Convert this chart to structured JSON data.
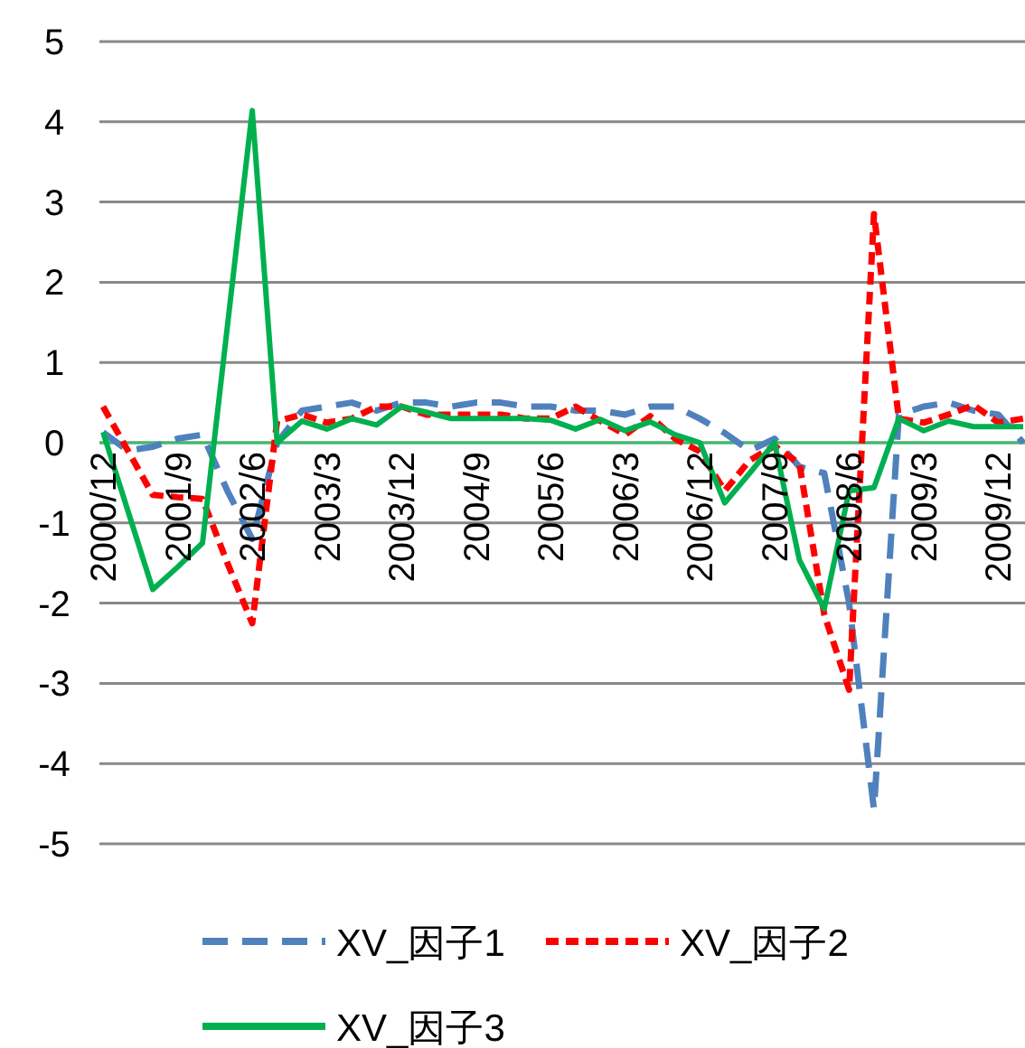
{
  "chart_data": {
    "type": "line",
    "categories": [
      "2000/12",
      null,
      null,
      "2001/9",
      null,
      null,
      "2002/6",
      null,
      null,
      "2003/3",
      null,
      null,
      "2003/12",
      null,
      null,
      "2004/9",
      null,
      null,
      "2005/6",
      null,
      null,
      "2006/3",
      null,
      null,
      "2006/12",
      null,
      null,
      "2007/9",
      null,
      null,
      "2008/6",
      null,
      null,
      "2009/3",
      null,
      null,
      "2009/12",
      null
    ],
    "series": [
      {
        "name": "XV_因子1",
        "color": "#4f81bd",
        "line_style": "dashed",
        "values": [
          0.13,
          -0.1,
          -0.05,
          0.05,
          0.1,
          -0.6,
          -1.2,
          0,
          0.4,
          0.45,
          0.5,
          0.4,
          0.5,
          0.5,
          0.45,
          0.5,
          0.5,
          0.45,
          0.45,
          0.4,
          0.4,
          0.35,
          0.45,
          0.45,
          0.3,
          0.12,
          -0.1,
          0.05,
          -0.3,
          -0.38,
          -2.0,
          -4.57,
          0.35,
          0.45,
          0.5,
          0.4,
          0.35,
          0.0
        ]
      },
      {
        "name": "XV_因子2",
        "color": "#ff0000",
        "line_style": "dotted",
        "values": [
          0.45,
          -0.1,
          -0.65,
          -0.68,
          -0.7,
          -1.5,
          -2.25,
          0.27,
          0.35,
          0.25,
          0.3,
          0.45,
          0.45,
          0.35,
          0.35,
          0.35,
          0.35,
          0.3,
          0.3,
          0.45,
          0.27,
          0.1,
          0.33,
          0.05,
          -0.11,
          -0.6,
          -0.22,
          -0.04,
          -0.26,
          -2.14,
          -3.08,
          2.85,
          0.3,
          0.25,
          0.35,
          0.47,
          0.25,
          0.3
        ]
      },
      {
        "name": "XV_因子3",
        "color": "#00b050",
        "line_style": "solid",
        "values": [
          0.13,
          -0.85,
          -1.83,
          -1.55,
          -1.25,
          1.45,
          4.14,
          0,
          0.27,
          0.17,
          0.3,
          0.22,
          0.45,
          0.38,
          0.3,
          0.3,
          0.3,
          0.3,
          0.28,
          0.17,
          0.29,
          0.15,
          0.26,
          0.1,
          0.0,
          -0.75,
          -0.38,
          0.0,
          -1.46,
          -2.07,
          -0.6,
          -0.56,
          0.3,
          0.15,
          0.27,
          0.2,
          0.2,
          0.2
        ]
      }
    ],
    "ylim": [
      -5,
      5
    ],
    "yticks": [
      -5,
      -4,
      -3,
      -2,
      -1,
      0,
      1,
      2,
      3,
      4,
      5
    ],
    "grid": "y",
    "legend": "bottom",
    "marker": "none"
  }
}
